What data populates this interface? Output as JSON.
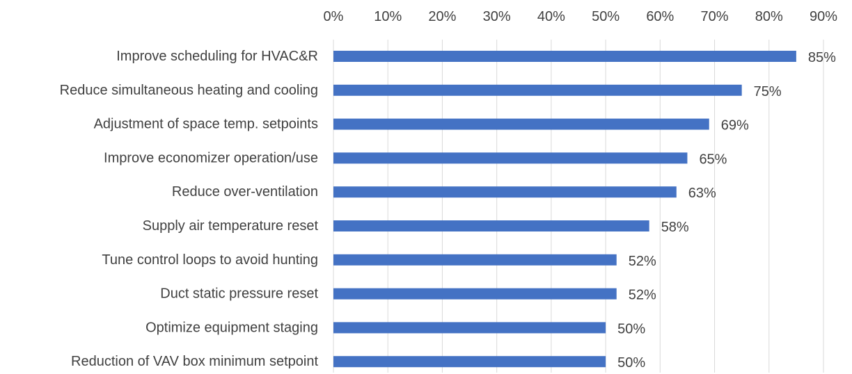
{
  "chart_data": {
    "type": "bar",
    "orientation": "horizontal",
    "categories": [
      "Improve scheduling for HVAC&R",
      "Reduce simultaneous heating and cooling",
      "Adjustment of  space temp. setpoints",
      "Improve economizer operation/use",
      "Reduce over-ventilation",
      "Supply air temperature reset",
      "Tune control loops to avoid hunting",
      "Duct static pressure reset",
      "Optimize equipment staging",
      "Reduction of VAV box minimum setpoint"
    ],
    "values": [
      85,
      75,
      69,
      65,
      63,
      58,
      52,
      52,
      50,
      50
    ],
    "data_labels": [
      "85%",
      "75%",
      "69%",
      "65%",
      "63%",
      "58%",
      "52%",
      "52%",
      "50%",
      "50%"
    ],
    "x_ticks": [
      "0%",
      "10%",
      "20%",
      "30%",
      "40%",
      "50%",
      "60%",
      "70%",
      "80%",
      "90%"
    ],
    "xlim": [
      0,
      90
    ],
    "x_axis_position": "top",
    "grid": true,
    "bar_color": "#4472c4",
    "title": "",
    "xlabel": "",
    "ylabel": ""
  }
}
